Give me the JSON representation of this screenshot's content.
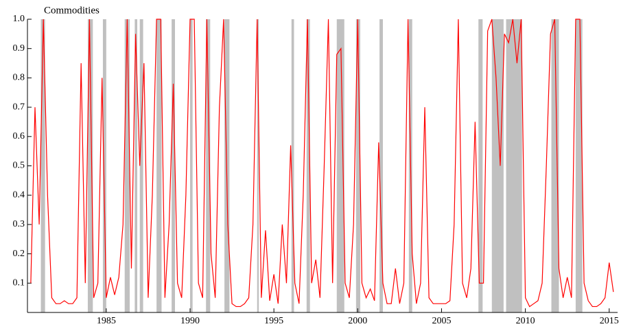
{
  "chart_data": {
    "type": "line",
    "title": "Commodities",
    "x": [
      1980.5,
      1980.75,
      1981,
      1981.25,
      1981.5,
      1981.75,
      1982,
      1982.25,
      1982.5,
      1982.75,
      1983,
      1983.25,
      1983.5,
      1983.75,
      1984,
      1984.25,
      1984.5,
      1984.75,
      1985,
      1985.25,
      1985.5,
      1985.75,
      1986,
      1986.25,
      1986.5,
      1986.75,
      1987,
      1987.25,
      1987.5,
      1987.75,
      1988,
      1988.25,
      1988.5,
      1988.75,
      1989,
      1989.25,
      1989.5,
      1989.75,
      1990,
      1990.25,
      1990.5,
      1990.75,
      1991,
      1991.25,
      1991.5,
      1991.75,
      1992,
      1992.25,
      1992.5,
      1992.75,
      1993,
      1993.25,
      1993.5,
      1993.75,
      1994,
      1994.25,
      1994.5,
      1994.75,
      1995,
      1995.25,
      1995.5,
      1995.75,
      1996,
      1996.25,
      1996.5,
      1996.75,
      1997,
      1997.25,
      1997.5,
      1997.75,
      1998,
      1998.25,
      1998.5,
      1998.75,
      1999,
      1999.25,
      1999.5,
      1999.75,
      2000,
      2000.25,
      2000.5,
      2000.75,
      2001,
      2001.25,
      2001.5,
      2001.75,
      2002,
      2002.25,
      2002.5,
      2002.75,
      2003,
      2003.25,
      2003.5,
      2003.75,
      2004,
      2004.25,
      2004.5,
      2004.75,
      2005,
      2005.25,
      2005.5,
      2005.75,
      2006,
      2006.25,
      2006.5,
      2006.75,
      2007,
      2007.25,
      2007.5,
      2007.75,
      2008,
      2008.25,
      2008.5,
      2008.75,
      2009,
      2009.25,
      2009.5,
      2009.75,
      2010,
      2010.25,
      2010.5,
      2010.75,
      2011,
      2011.25,
      2011.5,
      2011.75,
      2012,
      2012.25,
      2012.5,
      2012.75,
      2013,
      2013.25,
      2013.5,
      2013.75,
      2014,
      2014.25,
      2014.5,
      2014.75,
      2015,
      2015.25
    ],
    "series": [
      {
        "color": "#ff0000",
        "values": [
          0.1,
          0.7,
          0.3,
          1.0,
          0.4,
          0.05,
          0.03,
          0.03,
          0.04,
          0.03,
          0.03,
          0.05,
          0.85,
          0.1,
          1.0,
          0.05,
          0.1,
          0.8,
          0.05,
          0.12,
          0.06,
          0.12,
          0.3,
          1.0,
          0.15,
          0.95,
          0.5,
          0.85,
          0.05,
          0.4,
          1.0,
          1.0,
          0.05,
          0.3,
          0.78,
          0.1,
          0.05,
          0.4,
          1.0,
          1.0,
          0.1,
          0.05,
          1.0,
          0.2,
          0.05,
          0.7,
          1.0,
          0.3,
          0.03,
          0.02,
          0.02,
          0.03,
          0.05,
          0.3,
          1.0,
          0.05,
          0.28,
          0.04,
          0.13,
          0.03,
          0.3,
          0.1,
          0.57,
          0.1,
          0.03,
          0.4,
          1.0,
          0.1,
          0.18,
          0.05,
          0.5,
          1.0,
          0.1,
          0.88,
          0.9,
          0.1,
          0.05,
          0.3,
          1.0,
          0.1,
          0.05,
          0.08,
          0.04,
          0.58,
          0.1,
          0.03,
          0.03,
          0.15,
          0.03,
          0.1,
          1.0,
          0.2,
          0.03,
          0.1,
          0.7,
          0.05,
          0.03,
          0.03,
          0.03,
          0.03,
          0.04,
          0.3,
          1.0,
          0.1,
          0.05,
          0.15,
          0.65,
          0.1,
          0.1,
          0.96,
          1.0,
          0.8,
          0.5,
          0.95,
          0.92,
          1.0,
          0.85,
          1.0,
          0.05,
          0.02,
          0.03,
          0.04,
          0.1,
          0.5,
          0.95,
          1.0,
          0.15,
          0.05,
          0.12,
          0.05,
          1.0,
          1.0,
          0.1,
          0.04,
          0.02,
          0.02,
          0.03,
          0.05,
          0.17,
          0.07
        ]
      }
    ],
    "shaded_regions": [
      [
        1981.1,
        1981.35
      ],
      [
        1983.9,
        1984.2
      ],
      [
        1984.8,
        1985.0
      ],
      [
        1986.1,
        1986.4
      ],
      [
        1986.7,
        1986.85
      ],
      [
        1987.0,
        1987.2
      ],
      [
        1988.0,
        1988.3
      ],
      [
        1988.9,
        1989.1
      ],
      [
        1990.0,
        1990.15
      ],
      [
        1990.95,
        1991.2
      ],
      [
        1992.05,
        1992.35
      ],
      [
        1994.0,
        1994.1
      ],
      [
        1996.05,
        1996.2
      ],
      [
        1996.95,
        1997.15
      ],
      [
        1998.75,
        1999.2
      ],
      [
        1999.9,
        2000.15
      ],
      [
        2001.3,
        2001.5
      ],
      [
        2003.05,
        2003.25
      ],
      [
        2007.2,
        2007.45
      ],
      [
        2008.0,
        2008.7
      ],
      [
        2008.85,
        2009.8
      ],
      [
        2011.55,
        2012.0
      ],
      [
        2013.0,
        2013.4
      ]
    ],
    "shade_color": "#c0c0c0",
    "xlim": [
      1980.3,
      2015.5
    ],
    "xticks": [
      1985,
      1990,
      1995,
      2000,
      2005,
      2010,
      2015
    ],
    "ylim": [
      0,
      1
    ],
    "yticks": [
      0.1,
      0.2,
      0.3,
      0.4,
      0.5,
      0.6,
      0.7,
      0.8,
      0.9,
      {
        "value": 1,
        "label": "1.0"
      }
    ]
  }
}
